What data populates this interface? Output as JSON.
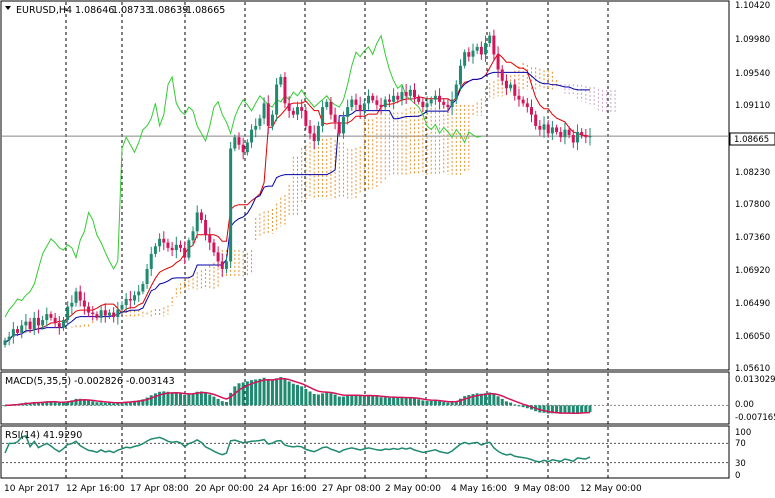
{
  "header": {
    "symbol": "EURUSD,H4",
    "open": "1.08646",
    "high": "1.08733",
    "low": "1.08639",
    "close": "1.08665"
  },
  "price_axis": {
    "labels": [
      "1.10420",
      "1.09980",
      "1.09540",
      "1.09110",
      "1.08665",
      "1.08230",
      "1.07800",
      "1.07360",
      "1.06920",
      "1.06490",
      "1.06050",
      "1.05610"
    ],
    "current_price": "1.08665"
  },
  "macd": {
    "title": "MACD(5,35,5) -0.002826 -0.003143",
    "axis_labels": [
      "0.013029",
      "0.00",
      "-0.007165"
    ]
  },
  "rsi": {
    "title": "RSI(14) 41.9290",
    "axis_labels": [
      "100",
      "70",
      "30",
      "0"
    ]
  },
  "time_axis": {
    "labels": [
      "10 Apr 2017",
      "12 Apr 16:00",
      "17 Apr 08:00",
      "20 Apr 00:00",
      "24 Apr 16:00",
      "27 Apr 08:00",
      "2 May 00:00",
      "4 May 16:00",
      "9 May 08:00",
      "12 May 00:00"
    ]
  },
  "colors": {
    "bull": "#1f8a70",
    "bear": "#d4145a",
    "tenkan": "#dd0000",
    "kijun": "#0000aa",
    "chikou": "#33cc33",
    "cloud_up": "#e8902a",
    "cloud_down": "#c9a3c9",
    "grid": "#000000",
    "macd_hist": "#1f8a70",
    "macd_signal": "#d4145a",
    "rsi_line": "#1f8a70"
  },
  "chart_data": {
    "type": "candlestick",
    "symbol": "EURUSD",
    "timeframe": "H4",
    "ylim": [
      1.0561,
      1.1042
    ],
    "last_close": 1.08665,
    "closes": [
      1.0595,
      1.06,
      1.061,
      1.0605,
      1.0615,
      1.062,
      1.061,
      1.0625,
      1.0615,
      1.0622,
      1.063,
      1.0625,
      1.0618,
      1.0612,
      1.0622,
      1.064,
      1.0645,
      1.066,
      1.0648,
      1.064,
      1.0632,
      1.063,
      1.0625,
      1.0635,
      1.0628,
      1.0632,
      1.0626,
      1.0636,
      1.0642,
      1.065,
      1.0648,
      1.0655,
      1.066,
      1.067,
      1.069,
      1.071,
      1.072,
      1.073,
      1.0725,
      1.0718,
      1.0715,
      1.0722,
      1.0718,
      1.0705,
      1.0728,
      1.074,
      1.0765,
      1.0755,
      1.0735,
      1.0725,
      1.0712,
      1.07,
      1.069,
      1.07,
      1.085,
      1.0865,
      1.0855,
      1.0845,
      1.0858,
      1.0875,
      1.088,
      1.089,
      1.091,
      1.088,
      1.0895,
      1.0935,
      1.0945,
      1.091,
      1.09,
      1.0895,
      1.0905,
      1.09,
      1.088,
      1.087,
      1.086,
      1.088,
      1.0905,
      1.0912,
      1.0895,
      1.0885,
      1.087,
      1.0892,
      1.0905,
      1.0915,
      1.0908,
      1.09,
      1.091,
      1.092,
      1.0914,
      1.0908,
      1.0905,
      1.0915,
      1.0912,
      1.092,
      1.0915,
      1.0925,
      1.092,
      1.0928,
      1.0918,
      1.0912,
      1.0905,
      1.091,
      1.0915,
      1.092,
      1.0912,
      1.0908,
      1.0905,
      1.0915,
      1.0935,
      1.096,
      1.0978,
      1.0972,
      1.098,
      1.0985,
      1.0975,
      1.099,
      1.1,
      1.0975,
      1.0955,
      1.094,
      1.093,
      1.0935,
      1.092,
      1.0915,
      1.091,
      1.0905,
      1.0895,
      1.088,
      1.0875,
      1.0882,
      1.087,
      1.0878,
      1.0872,
      1.0865,
      1.0875,
      1.0868,
      1.0858,
      1.0872,
      1.0868,
      1.0865,
      1.08665
    ],
    "macd_last": -0.002826,
    "macd_signal_last": -0.003143,
    "rsi_last": 41.929,
    "rsi_levels": [
      70,
      30
    ],
    "x_labels": [
      "10 Apr 2017",
      "12 Apr 16:00",
      "17 Apr 08:00",
      "20 Apr 00:00",
      "24 Apr 16:00",
      "27 Apr 08:00",
      "2 May 00:00",
      "4 May 16:00",
      "9 May 08:00",
      "12 May 00:00"
    ]
  }
}
